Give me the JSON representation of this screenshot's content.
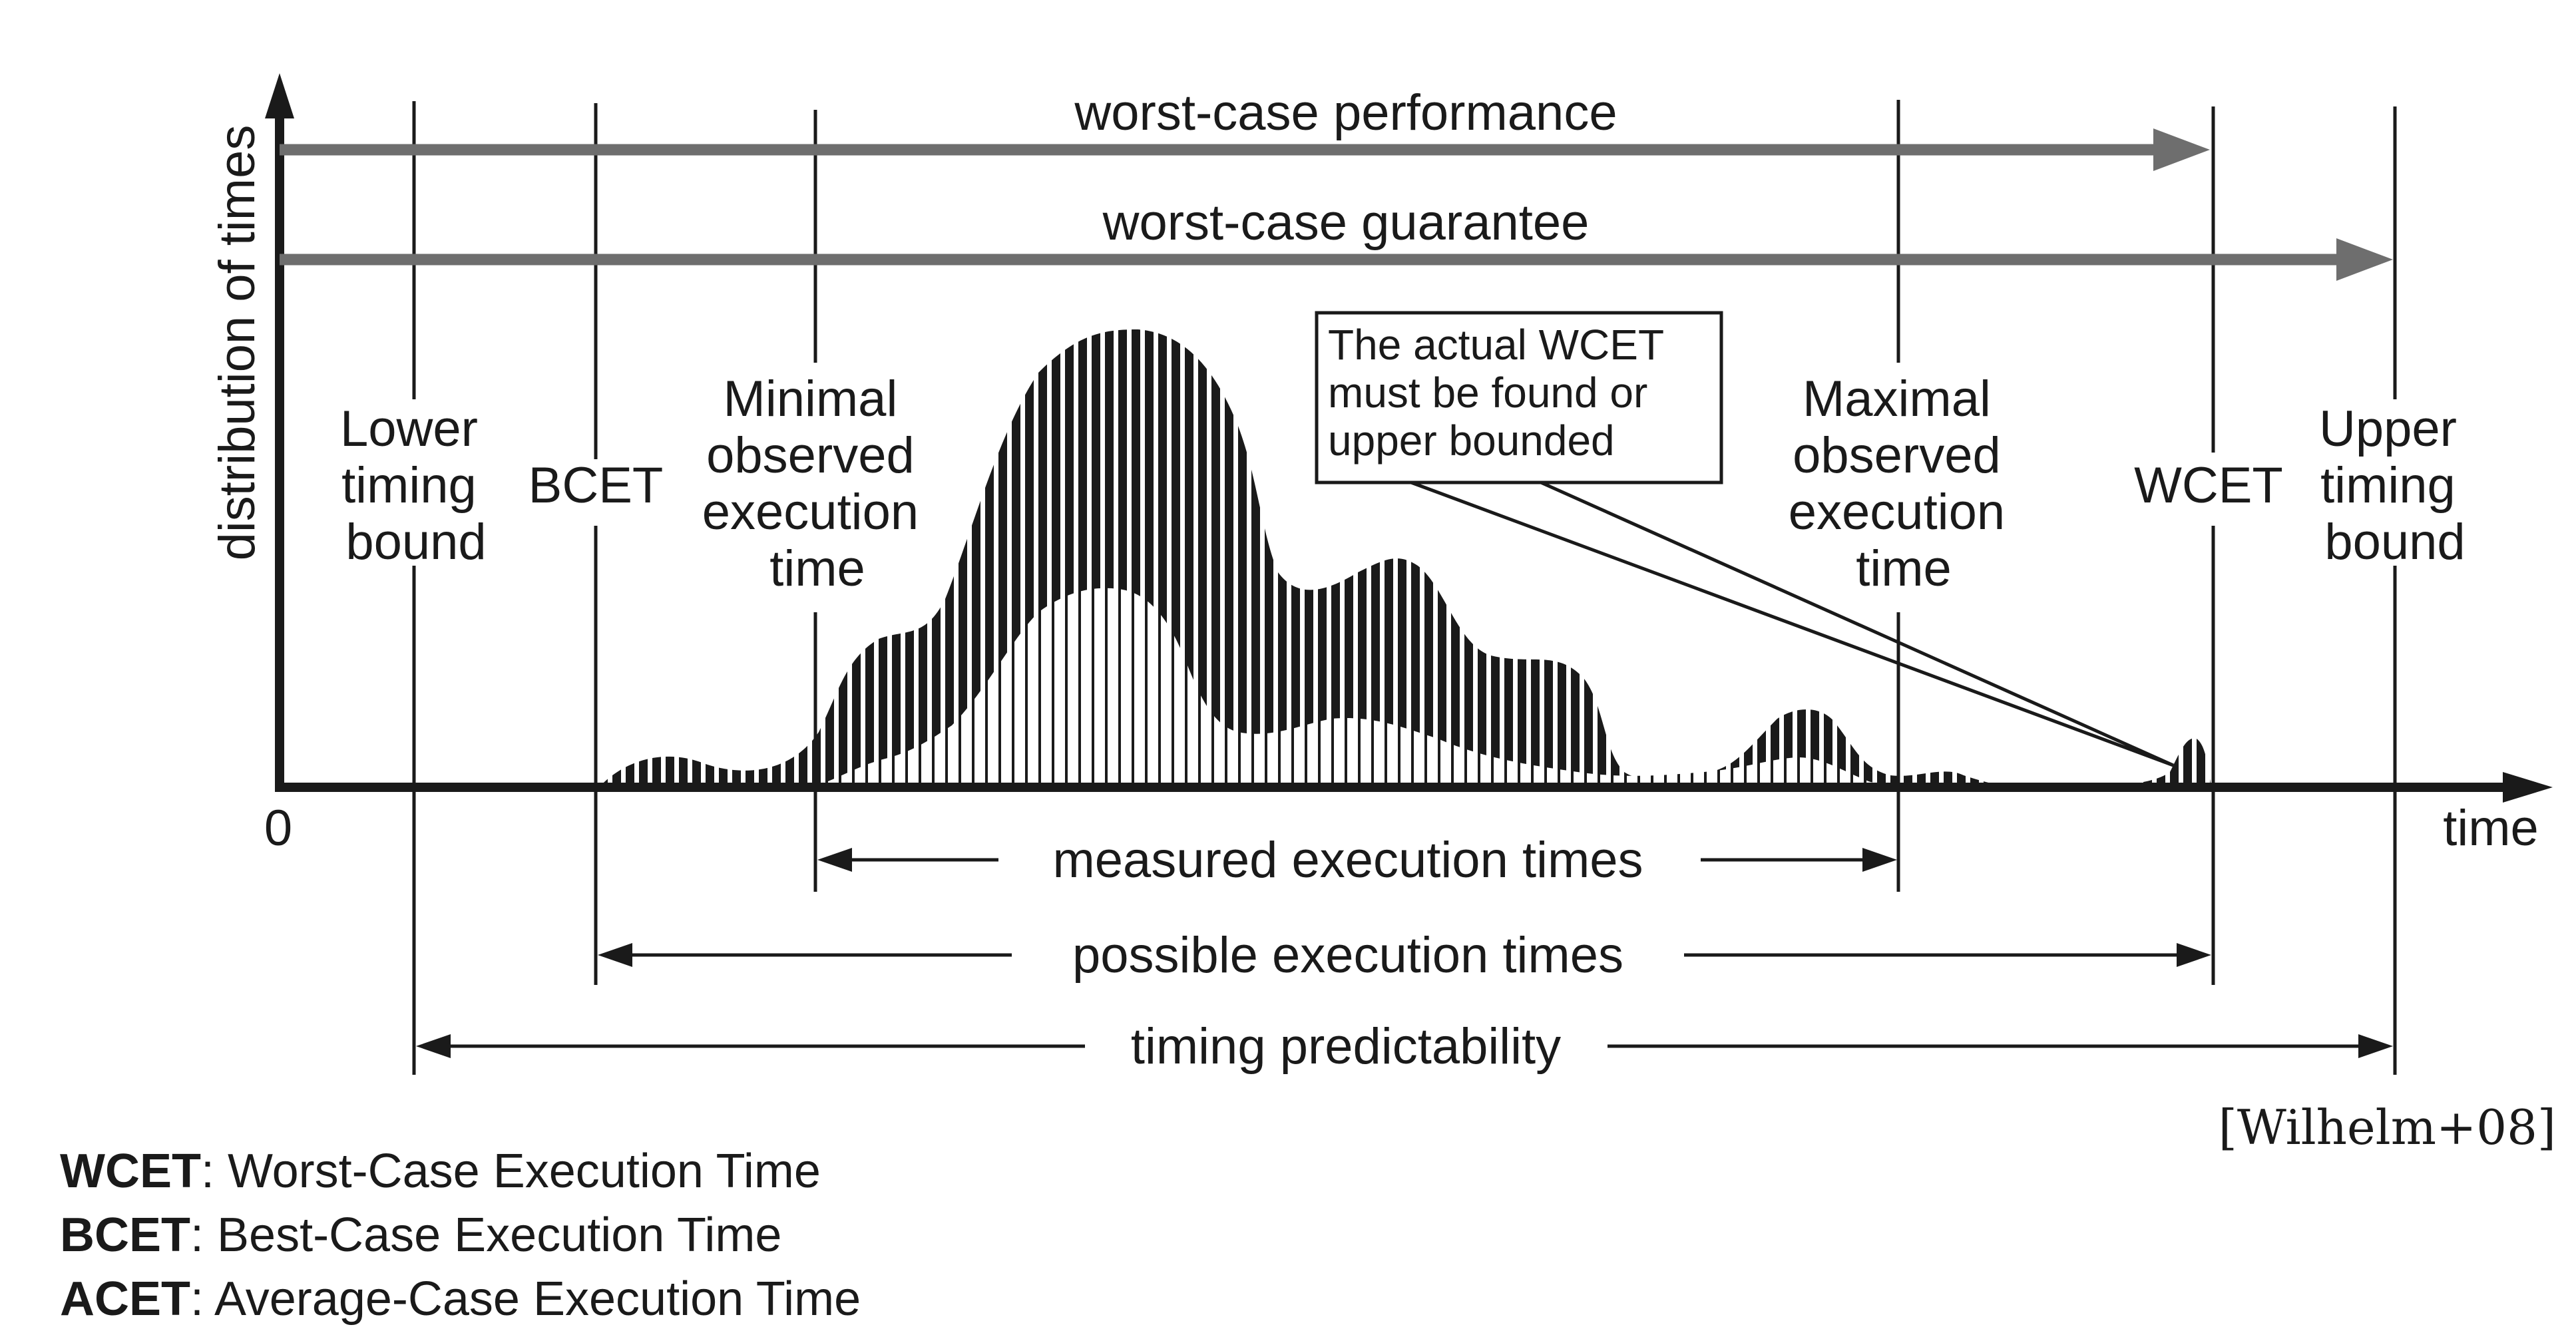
{
  "axes": {
    "y_label": "distribution of times",
    "x_label": "time",
    "origin_label": "0"
  },
  "bars": {
    "performance": "worst-case performance",
    "guarantee": "worst-case guarantee"
  },
  "markers": {
    "ltb": [
      "Lower",
      "timing",
      "bound"
    ],
    "bcet": [
      "BCET"
    ],
    "moet": [
      "Minimal",
      "observed",
      "execution",
      "time"
    ],
    "maxoet": [
      "Maximal",
      "observed",
      "execution",
      "time"
    ],
    "wcet": [
      "WCET"
    ],
    "utb": [
      "Upper",
      "timing",
      "bound"
    ]
  },
  "callout": [
    "The actual WCET",
    "must be found or",
    "upper bounded"
  ],
  "ranges": {
    "measured": "measured execution times",
    "possible": "possible execution times",
    "predictability": "timing predictability"
  },
  "legend": [
    {
      "abbr": "WCET",
      "desc": ": Worst-Case Execution Time"
    },
    {
      "abbr": "BCET",
      "desc": ": Best-Case Execution Time"
    },
    {
      "abbr": "ACET",
      "desc": ": Average-Case Execution Time"
    }
  ],
  "citation": "[Wilhelm+08]",
  "colors": {
    "ink": "#1a1a1a",
    "arrow_gray": "#6e6e6e"
  }
}
